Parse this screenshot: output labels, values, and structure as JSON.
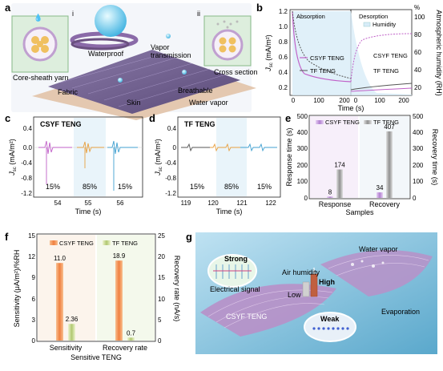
{
  "panels": {
    "a": {
      "letter": "a",
      "sub_i": "i",
      "sub_ii": "ii",
      "labels": {
        "waterproof": "Waterproof",
        "vapor1": "Vapor",
        "vapor2": "transmission",
        "core_sheath": "Core-sheath yarn",
        "cross_section": "Cross section",
        "fabric": "Fabric",
        "breathable": "Breathable",
        "skin": "Skin",
        "water_vapor": "Water vapor"
      }
    },
    "b": {
      "letter": "b",
      "absorption": "Absorption",
      "desorption": "Desorption",
      "ylabel": "J",
      "ylabel_sub": "sc",
      "ylabel_unit": " (mA/m²)",
      "y2label": "Atmospheric humidity (RH)",
      "xlabel": "Time (s)",
      "legend": {
        "humidity": "Humidity",
        "csyf": "CSYF TENG",
        "tf": "TF TENG"
      },
      "yticks": [
        "1.2",
        "1.0",
        "0.8",
        "0.6",
        "0.4",
        "0.2"
      ],
      "y2ticks": [
        "100",
        "80",
        "60",
        "40",
        "20"
      ],
      "y2unit": "%",
      "xticks_left": [
        "0",
        "100",
        "200"
      ],
      "xticks_right": [
        "0",
        "100",
        "200"
      ]
    },
    "c": {
      "letter": "c",
      "title": "CSYF TENG",
      "ylabel": "J",
      "ylabel_sub": "sc",
      "ylabel_unit": " (mA/m²)",
      "xlabel": "Time (s)",
      "yticks": [
        "0.4",
        "0.0",
        "-0.4",
        "-0.8",
        "-1.2"
      ],
      "xticks": [
        "54",
        "55",
        "56"
      ],
      "segments": [
        "15%",
        "85%",
        "15%"
      ]
    },
    "d": {
      "letter": "d",
      "title": "TF TENG",
      "ylabel": "J",
      "ylabel_sub": "sc",
      "ylabel_unit": " (mA/m²)",
      "xlabel": "Time (s)",
      "yticks": [
        "0.4",
        "0",
        "-0.4",
        "-0.8",
        "-1.2"
      ],
      "xticks": [
        "119",
        "120",
        "121",
        "122"
      ],
      "segments": [
        "15%",
        "85%",
        "15%"
      ]
    },
    "e": {
      "letter": "e",
      "ylabel": "Response time (s)",
      "y2label": "Recovery time (s)",
      "xlabel": "Samples",
      "legend": [
        "CSYF TENG",
        "TF TENG"
      ],
      "categories": [
        "Response",
        "Recovery"
      ],
      "yticks": [
        "0",
        "100",
        "200",
        "300",
        "400",
        "500"
      ],
      "y2ticks": [
        "0",
        "100",
        "200",
        "300",
        "400",
        "500"
      ]
    },
    "f": {
      "letter": "f",
      "ylabel": "Sensitivity (μA/m²)/%RH",
      "y2label": "Recovery rate (nA/s)",
      "xlabel": "Sensitive TENG",
      "legend": [
        "CSYF TENG",
        "TF TENG"
      ],
      "categories": [
        "Sensitivity",
        "Recovery rate"
      ],
      "yticks": [
        "0",
        "3",
        "6",
        "9",
        "12",
        "15"
      ],
      "y2ticks": [
        "0",
        "5",
        "10",
        "15",
        "20",
        "25"
      ]
    },
    "g": {
      "letter": "g",
      "labels": {
        "strong": "Strong",
        "water_vapor": "Water vapor",
        "air_humidity": "Air humidity",
        "high": "High",
        "low": "Low",
        "electrical_signal": "Electrical signal",
        "csyf": "CSYF TENG",
        "weak": "Weak",
        "evaporation": "Evaporation"
      }
    }
  },
  "chart_data": [
    {
      "type": "bar",
      "categories": [
        "Response",
        "Recovery"
      ],
      "series": [
        {
          "name": "CSYF TENG",
          "values": [
            8,
            34
          ]
        },
        {
          "name": "TF TENG",
          "values": [
            174,
            407
          ]
        }
      ],
      "ylabel": "Response time (s)",
      "ylim": [
        0,
        500
      ],
      "data_labels": [
        "8",
        "174",
        "34",
        "407"
      ]
    },
    {
      "type": "bar",
      "categories": [
        "Sensitivity",
        "Recovery rate"
      ],
      "series": [
        {
          "name": "CSYF TENG",
          "values": [
            11.0,
            18.9
          ]
        },
        {
          "name": "TF TENG",
          "values": [
            2.36,
            0.7
          ]
        }
      ],
      "ylabel": "Sensitivity (μA/m²)/%RH",
      "ylim": [
        0,
        15
      ],
      "y2lim": [
        0,
        25
      ],
      "data_labels": [
        "11.0",
        "2.36",
        "18.9",
        "0.7"
      ]
    }
  ],
  "colors": {
    "csyf": "#c060c8",
    "tf": "#555555",
    "orange": "#f0a060",
    "gray": "#b0b0b0",
    "purple_bar": "#c8a0e0",
    "green_bar": "#c8d890",
    "humidity_fill": "#cfe8f8",
    "panel_bg_g": "#6fb8d8"
  }
}
